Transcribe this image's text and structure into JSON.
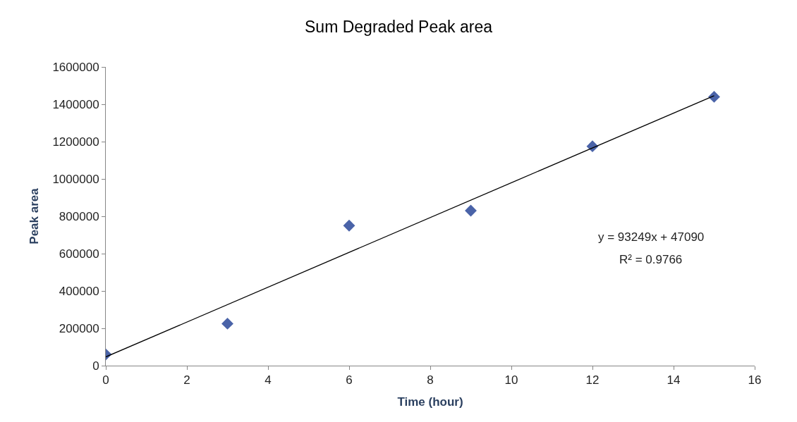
{
  "chart_data": {
    "type": "scatter",
    "title": "Sum Degraded Peak area",
    "xlabel": "Time (hour)",
    "ylabel": "Peak area",
    "x": [
      0,
      3,
      6,
      9,
      12,
      15
    ],
    "series": [
      {
        "color": "#4a63a8",
        "values": [
          60000,
          225000,
          750000,
          830000,
          1175000,
          1440000
        ],
        "marker": "diamond"
      },
      {
        "type": "line",
        "color": "#000000",
        "x": [
          0,
          15
        ],
        "values": [
          47000,
          1446000
        ],
        "marker": "none",
        "line_style": "solid"
      }
    ],
    "xlim": [
      0,
      16
    ],
    "xticks": [
      0,
      2,
      4,
      6,
      8,
      10,
      12,
      14,
      16
    ],
    "ylim": [
      0,
      1600000
    ],
    "yticks": [
      0,
      200000,
      400000,
      600000,
      800000,
      1000000,
      1200000,
      1400000,
      1600000
    ],
    "annotations": [
      "y = 93249x + 47090",
      "R² = 0.9766"
    ]
  }
}
